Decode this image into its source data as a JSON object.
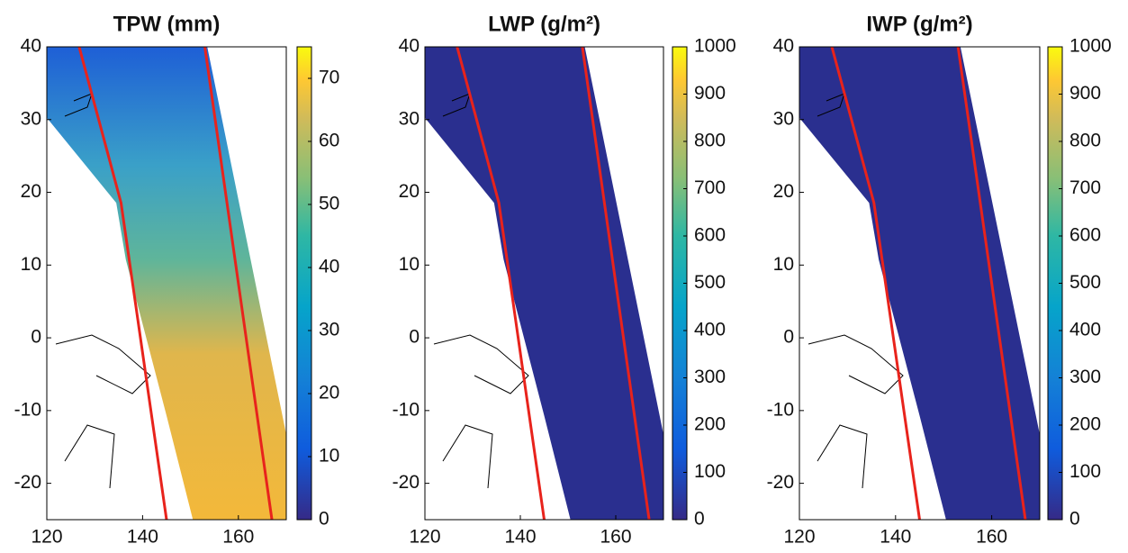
{
  "chart_data": [
    {
      "type": "map",
      "title": "TPW (mm)",
      "xlim": [
        120,
        170
      ],
      "xticks": [
        120,
        140,
        160
      ],
      "ylim": [
        -25,
        40
      ],
      "yticks": [
        -20,
        -10,
        0,
        10,
        20,
        30,
        40
      ],
      "colormap": "parula",
      "clim": [
        0,
        75
      ],
      "cticks": [
        0,
        10,
        20,
        30,
        40,
        50,
        60,
        70
      ]
    },
    {
      "type": "map",
      "title": "LWP (g/m²)",
      "xlim": [
        120,
        170
      ],
      "xticks": [
        120,
        140,
        160
      ],
      "ylim": [
        -25,
        40
      ],
      "yticks": [
        -20,
        -10,
        0,
        10,
        20,
        30,
        40
      ],
      "colormap": "parula",
      "clim": [
        0,
        1000
      ],
      "cticks": [
        0,
        100,
        200,
        300,
        400,
        500,
        600,
        700,
        800,
        900,
        1000
      ]
    },
    {
      "type": "map",
      "title": "IWP (g/m²)",
      "xlim": [
        120,
        170
      ],
      "xticks": [
        120,
        140,
        160
      ],
      "ylim": [
        -25,
        40
      ],
      "yticks": [
        -20,
        -10,
        0,
        10,
        20,
        30,
        40
      ],
      "colormap": "parula",
      "clim": [
        0,
        1000
      ],
      "cticks": [
        0,
        100,
        200,
        300,
        400,
        500,
        600,
        700,
        800,
        900,
        1000
      ]
    }
  ]
}
